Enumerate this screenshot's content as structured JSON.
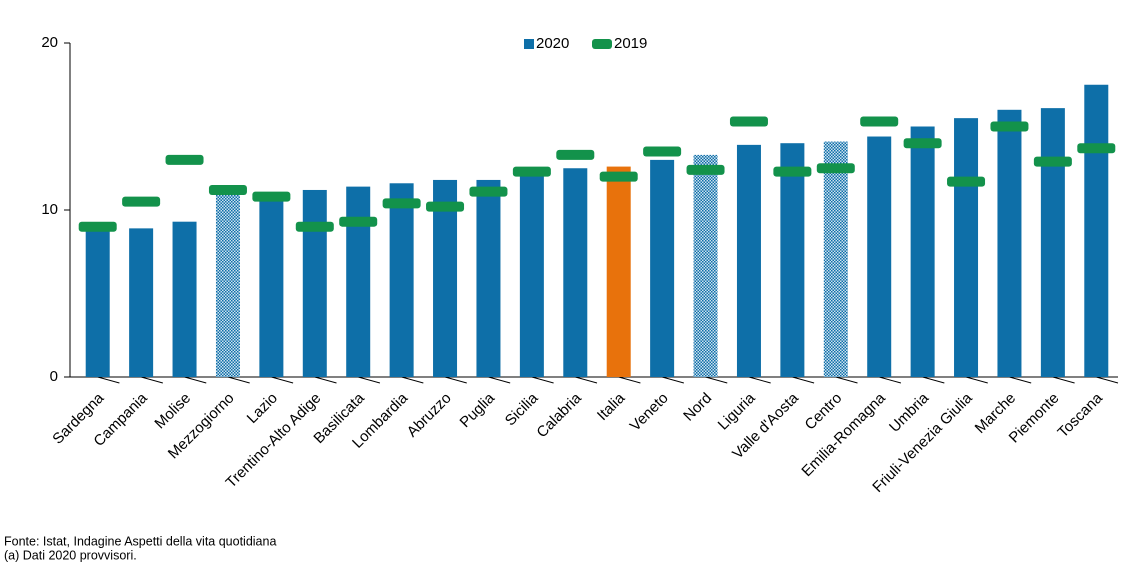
{
  "chart_data": {
    "type": "bar_marker",
    "categories": [
      "Sardegna",
      "Campania",
      "Molise",
      "Mezzogiorno",
      "Lazio",
      "Trentino-Alto Adige",
      "Basilicata",
      "Lombardia",
      "Abruzzo",
      "Puglia",
      "Sicilia",
      "Calabria",
      "Italia",
      "Veneto",
      "Nord",
      "Liguria",
      "Valle d'Aosta",
      "Centro",
      "Emilia-Romagna",
      "Umbria",
      "Friuli-Venezia Giulia",
      "Marche",
      "Piemonte",
      "Toscana"
    ],
    "series": [
      {
        "name": "2020",
        "color": "#0e6fa8",
        "colors": [
          "#0e6fa8",
          "#0e6fa8",
          "#0e6fa8",
          "#0e6fa8",
          "#0e6fa8",
          "#0e6fa8",
          "#0e6fa8",
          "#0e6fa8",
          "#0e6fa8",
          "#0e6fa8",
          "#0e6fa8",
          "#0e6fa8",
          "#e8720c",
          "#0e6fa8",
          "#0e6fa8",
          "#0e6fa8",
          "#0e6fa8",
          "#0e6fa8",
          "#0e6fa8",
          "#0e6fa8",
          "#0e6fa8",
          "#0e6fa8",
          "#0e6fa8",
          "#0e6fa8"
        ],
        "hatched": [
          false,
          false,
          false,
          true,
          false,
          false,
          false,
          false,
          false,
          false,
          false,
          false,
          false,
          false,
          true,
          false,
          false,
          true,
          false,
          false,
          false,
          false,
          false,
          false
        ],
        "values": [
          9.0,
          8.9,
          9.3,
          11.2,
          10.8,
          11.2,
          11.4,
          11.6,
          11.8,
          11.8,
          12.3,
          12.5,
          12.6,
          13.0,
          13.3,
          13.9,
          14.0,
          14.1,
          14.4,
          15.0,
          15.5,
          16.0,
          16.1,
          17.5
        ]
      },
      {
        "name": "2019",
        "color": "#13924b",
        "values": [
          9.0,
          10.5,
          13.0,
          11.2,
          10.8,
          9.0,
          9.3,
          10.4,
          10.2,
          11.1,
          12.3,
          13.3,
          12.0,
          13.5,
          12.4,
          15.3,
          12.3,
          12.5,
          15.3,
          14.0,
          11.7,
          15.0,
          12.9,
          13.7
        ]
      }
    ],
    "ylim": [
      0,
      20
    ],
    "yticks": [
      0,
      10,
      20
    ],
    "grid": false,
    "legend": "top",
    "notes": [
      "Fonte: Istat, Indagine Aspetti della vita quotidiana",
      "(a) Dati 2020 provvisori."
    ]
  }
}
